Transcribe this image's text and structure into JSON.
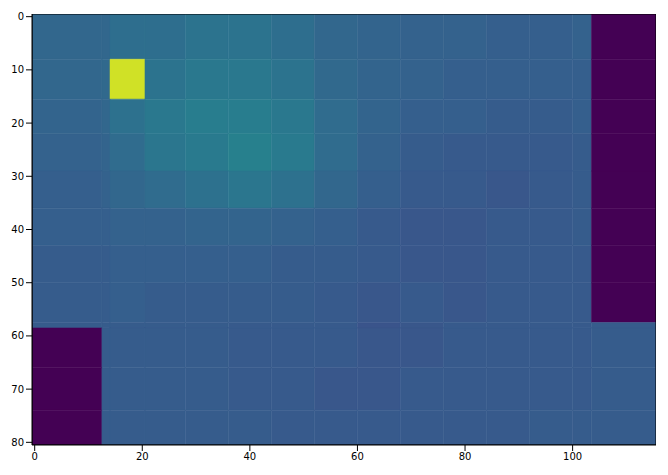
{
  "chart_data": {
    "type": "heatmap",
    "xlim": [
      -0.5,
      115.5
    ],
    "ylim": [
      -0.5,
      80.5
    ],
    "xticks": [
      0,
      20,
      40,
      60,
      80,
      100
    ],
    "yticks": [
      0,
      10,
      20,
      30,
      40,
      50,
      60,
      70,
      80
    ],
    "color_range": [
      0,
      1
    ],
    "x_edges": [
      -0.5,
      12.5,
      14,
      20.5,
      28,
      36,
      44,
      52,
      60,
      68,
      76,
      84,
      92,
      100,
      103.5,
      115.5
    ],
    "y_edges": [
      -0.5,
      8,
      15.5,
      22,
      29,
      36,
      43,
      50,
      57.5,
      58.5,
      66,
      74,
      80.5
    ],
    "cells": [
      [
        0.33,
        0.33,
        0.36,
        0.36,
        0.38,
        0.38,
        0.36,
        0.33,
        0.32,
        0.31,
        0.31,
        0.3,
        0.3,
        0.31,
        0
      ],
      [
        0.33,
        0.34,
        0.93,
        0.38,
        0.4,
        0.4,
        0.38,
        0.34,
        0.32,
        0.31,
        0.3,
        0.3,
        0.3,
        0.3,
        0
      ],
      [
        0.32,
        0.33,
        0.37,
        0.4,
        0.42,
        0.42,
        0.4,
        0.35,
        0.32,
        0.3,
        0.3,
        0.29,
        0.29,
        0.3,
        0
      ],
      [
        0.31,
        0.32,
        0.35,
        0.39,
        0.41,
        0.43,
        0.41,
        0.35,
        0.31,
        0.29,
        0.28,
        0.28,
        0.28,
        0.29,
        0
      ],
      [
        0.3,
        0.31,
        0.33,
        0.35,
        0.37,
        0.39,
        0.37,
        0.33,
        0.3,
        0.28,
        0.28,
        0.27,
        0.28,
        0.29,
        0
      ],
      [
        0.3,
        0.3,
        0.31,
        0.31,
        0.32,
        0.32,
        0.31,
        0.3,
        0.28,
        0.27,
        0.27,
        0.28,
        0.28,
        0.29,
        0
      ],
      [
        0.29,
        0.29,
        0.3,
        0.3,
        0.3,
        0.3,
        0.29,
        0.29,
        0.28,
        0.27,
        0.27,
        0.28,
        0.28,
        0.28,
        0
      ],
      [
        0.29,
        0.29,
        0.3,
        0.29,
        0.29,
        0.29,
        0.29,
        0.28,
        0.27,
        0.28,
        0.27,
        0.28,
        0.28,
        0.28,
        0
      ],
      [
        0.29,
        0.29,
        0.29,
        0.29,
        0.29,
        0.28,
        0.28,
        0.28,
        0.26,
        0.27,
        0.28,
        0.28,
        0.28,
        0.28,
        0.29
      ],
      [
        0,
        0.29,
        0.29,
        0.29,
        0.29,
        0.28,
        0.28,
        0.28,
        0.27,
        0.27,
        0.28,
        0.28,
        0.28,
        0.28,
        0.29
      ],
      [
        0,
        0.29,
        0.29,
        0.29,
        0.29,
        0.28,
        0.28,
        0.27,
        0.27,
        0.28,
        0.28,
        0.28,
        0.28,
        0.28,
        0.29
      ],
      [
        0,
        0.29,
        0.29,
        0.29,
        0.29,
        0.29,
        0.28,
        0.28,
        0.28,
        0.28,
        0.28,
        0.28,
        0.29,
        0.29,
        0.29
      ]
    ]
  }
}
